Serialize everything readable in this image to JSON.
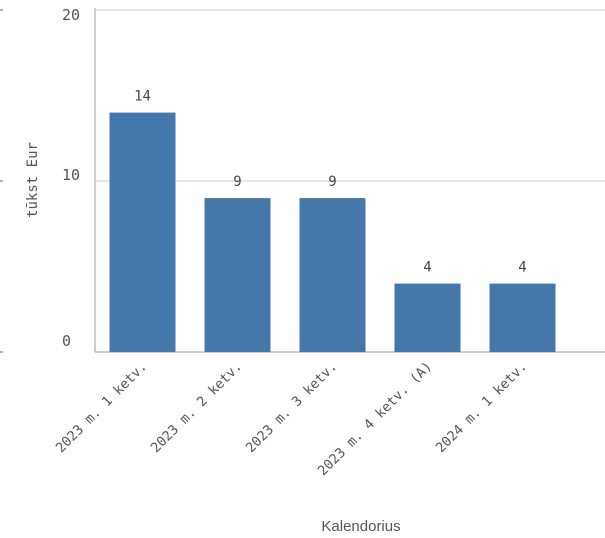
{
  "chart_data": {
    "type": "bar",
    "categories": [
      "2023 m. 1 ketv.",
      "2023 m. 2 ketv.",
      "2023 m. 3 ketv.",
      "2023 m. 4 ketv. (A)",
      "2024 m. 1 ketv."
    ],
    "values": [
      14,
      9,
      9,
      4,
      4
    ],
    "data_labels": [
      "14",
      "9",
      "9",
      "4",
      "4"
    ],
    "ylabel": "tūkst Eur",
    "xlabel": "Kalendorius",
    "ylim": [
      0,
      20
    ],
    "yticks": [
      0,
      10,
      20
    ],
    "grid": true,
    "colors": {
      "bar": "#4477aa",
      "grid": "#cccccc",
      "axis": "#999999"
    }
  }
}
